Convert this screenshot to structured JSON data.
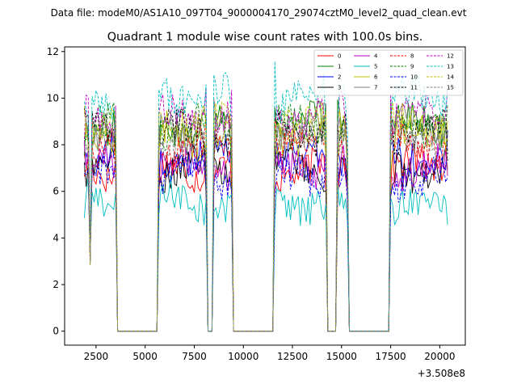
{
  "chart_data": {
    "type": "line",
    "suptitle": "Data file: modeM0/AS1A10_097T04_9000004170_29074cztM0_level2_quad_clean.evt",
    "title": "Quadrant 1 module wise count rates with 100.0s bins.",
    "xlabel": "",
    "ylabel": "",
    "x_offset_label": "+3.508e8",
    "xlim": [
      900,
      21300
    ],
    "ylim": [
      -0.6,
      12.2
    ],
    "x_ticks": [
      2500,
      5000,
      7500,
      10000,
      12500,
      15000,
      17500,
      20000
    ],
    "x_tick_labels": [
      "2500",
      "5000",
      "7500",
      "10000",
      "12500",
      "15000",
      "17500",
      "20000"
    ],
    "y_ticks": [
      0,
      2,
      4,
      6,
      8,
      10,
      12
    ],
    "y_tick_labels": [
      "0",
      "2",
      "4",
      "6",
      "8",
      "10",
      "12"
    ],
    "legend_position": "upper right",
    "bin_size_s": 100,
    "segments": [
      {
        "start": 1900,
        "end": 3500
      },
      {
        "start": 5700,
        "end": 8100
      },
      {
        "start": 8500,
        "end": 9400
      },
      {
        "start": 11600,
        "end": 14200
      },
      {
        "start": 14800,
        "end": 15300
      },
      {
        "start": 17500,
        "end": 20400
      }
    ],
    "series": [
      {
        "name": "0",
        "color": "#ff0000",
        "dash": "solid",
        "level": 7.0
      },
      {
        "name": "1",
        "color": "#008000",
        "dash": "solid",
        "level": 9.0
      },
      {
        "name": "2",
        "color": "#0000ff",
        "dash": "solid",
        "level": 7.5
      },
      {
        "name": "3",
        "color": "#000000",
        "dash": "solid",
        "level": 7.0
      },
      {
        "name": "4",
        "color": "#bf00bf",
        "dash": "solid",
        "level": 7.1
      },
      {
        "name": "5",
        "color": "#00bfbf",
        "dash": "solid",
        "level": 5.5
      },
      {
        "name": "6",
        "color": "#bfbf00",
        "dash": "solid",
        "level": 8.4
      },
      {
        "name": "7",
        "color": "#808080",
        "dash": "solid",
        "level": 8.7
      },
      {
        "name": "8",
        "color": "#ff0000",
        "dash": "dashed",
        "level": 8.0
      },
      {
        "name": "9",
        "color": "#008000",
        "dash": "dashed",
        "level": 8.8
      },
      {
        "name": "10",
        "color": "#0000ff",
        "dash": "dashed",
        "level": 6.6
      },
      {
        "name": "11",
        "color": "#000000",
        "dash": "dashed",
        "level": 8.5
      },
      {
        "name": "12",
        "color": "#bf00bf",
        "dash": "dashed",
        "level": 9.2
      },
      {
        "name": "13",
        "color": "#00bfbf",
        "dash": "dashed",
        "level": 10.1
      },
      {
        "name": "14",
        "color": "#bfbf00",
        "dash": "dashed",
        "level": 9.0
      },
      {
        "name": "15",
        "color": "#808080",
        "dash": "dashed",
        "level": 8.3
      }
    ]
  }
}
